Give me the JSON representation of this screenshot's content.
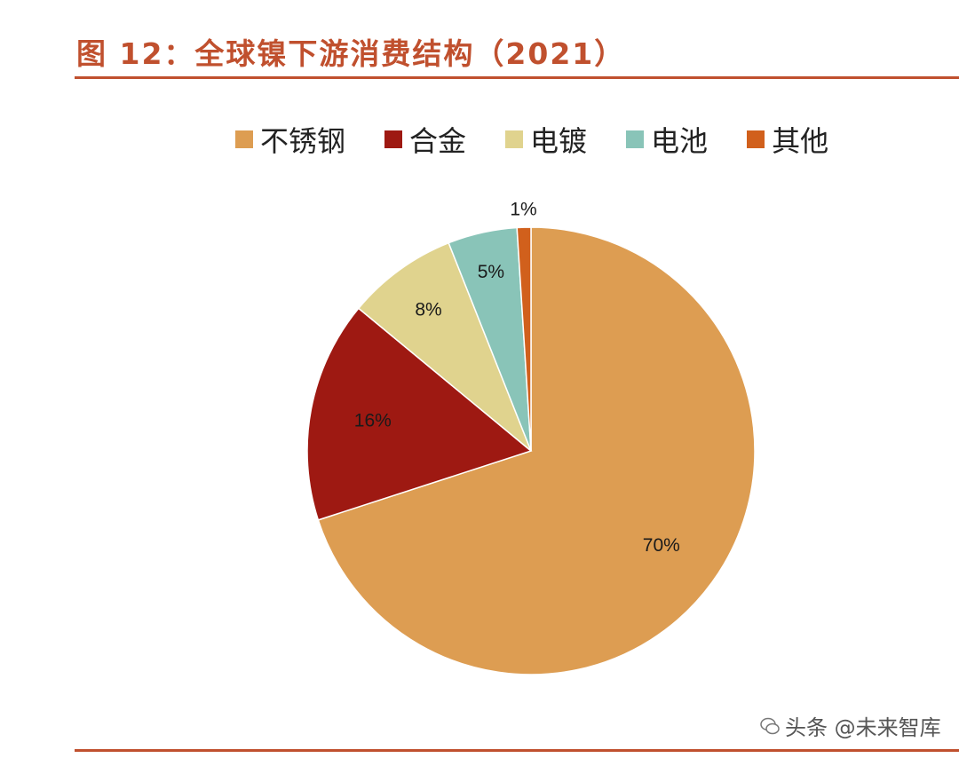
{
  "header": {
    "title": "图 12：全球镍下游消费结构（2021）"
  },
  "chart_data": {
    "type": "pie",
    "title": "图 12：全球镍下游消费结构（2021）",
    "start_angle_deg": 0,
    "direction": "clockwise",
    "legend_position": "top",
    "slices": [
      {
        "name": "不锈钢",
        "value": 70,
        "label": "70%",
        "color": "#dd9d52"
      },
      {
        "name": "合金",
        "value": 16,
        "label": "16%",
        "color": "#9e1912"
      },
      {
        "name": "电镀",
        "value": 8,
        "label": "8%",
        "color": "#e0d38e"
      },
      {
        "name": "电池",
        "value": 5,
        "label": "5%",
        "color": "#89c4b8"
      },
      {
        "name": "其他",
        "value": 1,
        "label": "1%",
        "color": "#d1601c"
      }
    ]
  },
  "watermark": {
    "text": "头条 @未来智库"
  }
}
